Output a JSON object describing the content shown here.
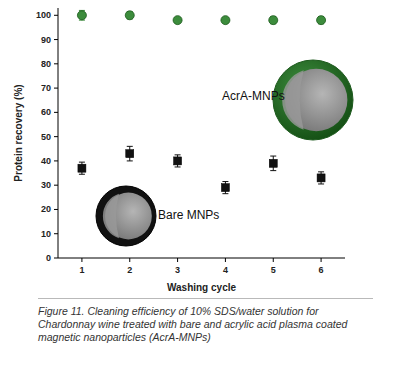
{
  "chart_data": {
    "type": "scatter",
    "x_label": "Washing cycle",
    "y_label": "Protein recovery (%)",
    "caption": "Figure 11. Cleaning efficiency of 10% SDS/water solution for Chardonnay wine treated with bare and acrylic acid plasma coated magnetic nanoparticles (AcrA-MNPs)",
    "annotations": [
      "AcrA-MNPs",
      "Bare MNPs"
    ],
    "x": [
      1,
      2,
      3,
      4,
      5,
      6
    ],
    "xlim": [
      0.5,
      6.5
    ],
    "xticks": [
      1,
      2,
      3,
      4,
      5,
      6
    ],
    "ylim": [
      0,
      103
    ],
    "yticks": [
      0,
      10,
      20,
      30,
      40,
      50,
      60,
      70,
      80,
      90,
      100
    ],
    "grid": false,
    "series": [
      {
        "name": "AcrA-MNPs",
        "color": "#3c8c3c",
        "marker": "circle",
        "values": [
          100,
          100,
          98,
          98,
          98,
          98
        ],
        "errors": [
          2,
          1.5,
          1,
          1,
          1.5,
          1.5
        ]
      },
      {
        "name": "Bare MNPs",
        "color": "#111111",
        "marker": "square",
        "values": [
          37,
          43,
          40,
          29,
          39,
          33
        ],
        "errors": [
          2.5,
          3,
          2.5,
          2.5,
          3,
          2.5
        ]
      }
    ]
  }
}
